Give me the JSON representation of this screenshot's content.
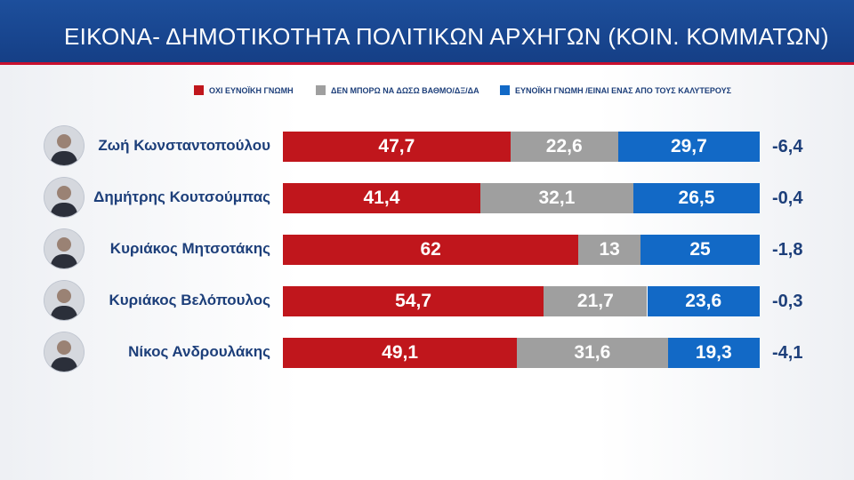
{
  "header": {
    "title": "ΕΙΚΟΝΑ- ΔΗΜΟΤΙΚΟΤΗΤΑ ΠΟΛΙΤΙΚΩΝ ΑΡΧΗΓΩΝ (ΚΟΙΝ. ΚΟΜΜΑΤΩΝ)"
  },
  "legend": [
    {
      "label": "ΟΧΙ ΕΥΝΟΪΚΗ ΓΝΩΜΗ",
      "color": "#c0161c"
    },
    {
      "label": "ΔΕΝ ΜΠΟΡΩ ΝΑ ΔΩΣΩ ΒΑΘΜΟ/ΔΞ/ΔΑ",
      "color": "#9f9f9f"
    },
    {
      "label": "ΕΥΝΟΪΚΗ ΓΝΩΜΗ /ΕΙΝΑΙ ΕΝΑΣ ΑΠΟ ΤΟΥΣ ΚΑΛΥΤΕΡΟΥΣ",
      "color": "#1269c6"
    }
  ],
  "chart_data": {
    "type": "bar",
    "stacked": true,
    "orientation": "horizontal",
    "title": "ΕΙΚΟΝΑ- ΔΗΜΟΤΙΚΟΤΗΤΑ ΠΟΛΙΤΙΚΩΝ ΑΡΧΗΓΩΝ (ΚΟΙΝ. ΚΟΜΜΑΤΩΝ)",
    "legend_position": "top",
    "categories": [
      "Ζωή Κωνσταντοπούλου",
      "Δημήτρης Κουτσούμπας",
      "Κυριάκος Μητσοτάκης",
      "Κυριάκος Βελόπουλος",
      "Νίκος Ανδρουλάκης"
    ],
    "series": [
      {
        "name": "ΟΧΙ ΕΥΝΟΪΚΗ ΓΝΩΜΗ",
        "color": "#c0161c",
        "values": [
          47.7,
          41.4,
          62,
          54.7,
          49.1
        ],
        "labels": [
          "47,7",
          "41,4",
          "62",
          "54,7",
          "49,1"
        ]
      },
      {
        "name": "ΔΕΝ ΜΠΟΡΩ ΝΑ ΔΩΣΩ ΒΑΘΜΟ/ΔΞ/ΔΑ",
        "color": "#9f9f9f",
        "values": [
          22.6,
          32.1,
          13,
          21.7,
          31.6
        ],
        "labels": [
          "22,6",
          "32,1",
          "13",
          "21,7",
          "31,6"
        ]
      },
      {
        "name": "ΕΥΝΟΪΚΗ ΓΝΩΜΗ /ΕΙΝΑΙ ΕΝΑΣ ΑΠΟ ΤΟΥΣ ΚΑΛΥΤΕΡΟΥΣ",
        "color": "#1269c6",
        "values": [
          29.7,
          26.5,
          25,
          23.6,
          19.3
        ],
        "labels": [
          "29,7",
          "26,5",
          "25",
          "23,6",
          "19,3"
        ]
      }
    ],
    "net_change": [
      "-6,4",
      "-0,4",
      "-1,8",
      "-0,3",
      "-4,1"
    ],
    "xlim": [
      0,
      100
    ],
    "grid": false
  }
}
